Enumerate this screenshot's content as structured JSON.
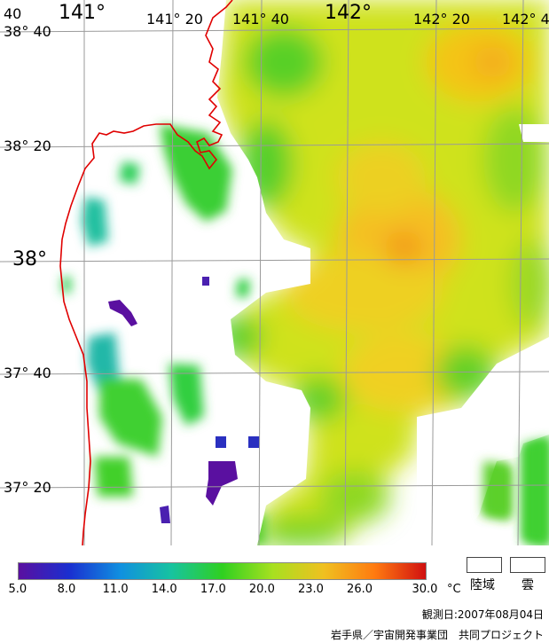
{
  "map": {
    "lon_labels_large": [
      "141°",
      "142°"
    ],
    "lon_labels_small": [
      "141°  20",
      "141°  40",
      "142°  20",
      "142°  4"
    ],
    "corner_top_left": "40",
    "lat_labels_large": [
      "38°"
    ],
    "lat_labels_small": [
      "38°  40",
      "38°  20",
      "37°  40",
      "37°  20"
    ]
  },
  "colorbar": {
    "ticks": [
      "5.0",
      "8.0",
      "11.0",
      "14.0",
      "17.0",
      "20.0",
      "23.0",
      "26.0",
      "30.0"
    ],
    "unit": "°C",
    "colors": [
      "#5a0fa0",
      "#1a2fd0",
      "#1090e0",
      "#17c3a0",
      "#2fd020",
      "#a8e020",
      "#f0c020",
      "#ff7a10",
      "#d01010"
    ]
  },
  "legend": {
    "land_label": "陸域",
    "cloud_label": "雲"
  },
  "footer": {
    "observation_date": "観測日:2007年08月04日",
    "credit": "岩手県／宇宙開発事業団　共同プロジェクト"
  }
}
